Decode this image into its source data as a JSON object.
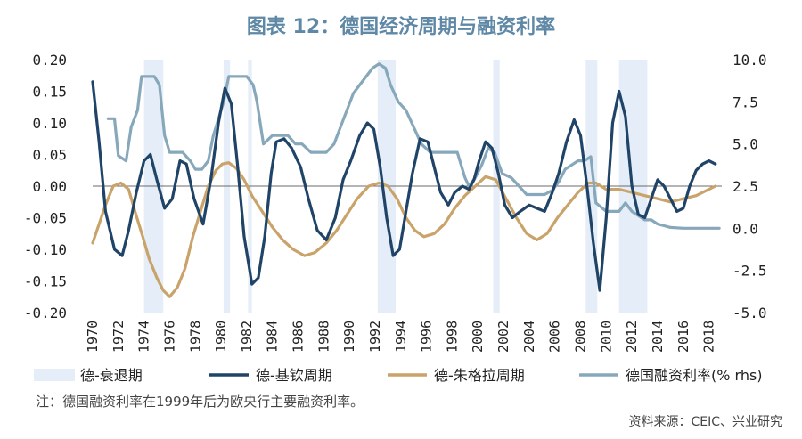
{
  "title": "图表 12：德国经济周期与融资利率",
  "note": "注：德国融资利率在1999年后为欧央行主要融资利率。",
  "source": "资料来源：CEIC、兴业研究",
  "colors": {
    "recession": "#e5eef8",
    "juglar": "#1f4467",
    "kuznets": "#c9a369",
    "rate": "#87a8bb",
    "title": "#5e88a6"
  },
  "chart_data": {
    "type": "line",
    "x_ticks": [
      "1970",
      "1972",
      "1974",
      "1976",
      "1978",
      "1980",
      "1982",
      "1984",
      "1986",
      "1988",
      "1990",
      "1992",
      "1994",
      "1996",
      "1998",
      "2000",
      "2002",
      "2004",
      "2006",
      "2008",
      "2010",
      "2012",
      "2014",
      "2016",
      "2018"
    ],
    "xlim": [
      1970,
      2019
    ],
    "ylim_left": [
      -0.2,
      0.2
    ],
    "ylim_right": [
      -5.0,
      10.0
    ],
    "y_ticks_left": [
      "0.20",
      "0.15",
      "0.10",
      "0.05",
      "0.00",
      "-0.05",
      "-0.10",
      "-0.15",
      "-0.20"
    ],
    "y_ticks_right": [
      "10.0",
      "7.5",
      "5.0",
      "2.5",
      "0.0",
      "-2.5",
      "-5.0"
    ],
    "recessions": [
      [
        1974.0,
        1975.5
      ],
      [
        1980.2,
        1980.7
      ],
      [
        1982.1,
        1982.4
      ],
      [
        1992.2,
        1993.6
      ],
      [
        2001.2,
        2001.7
      ],
      [
        2008.4,
        2009.3
      ],
      [
        2011.0,
        2013.2
      ]
    ],
    "legend": [
      {
        "label": "德-衰退期",
        "kind": "area",
        "color_key": "recession"
      },
      {
        "label": "德-基钦周期",
        "kind": "line",
        "color_key": "juglar"
      },
      {
        "label": "德-朱格拉周期",
        "kind": "line",
        "color_key": "kuznets"
      },
      {
        "label": "德国融资利率(% rhs)",
        "kind": "line",
        "color_key": "rate"
      }
    ],
    "series": [
      {
        "name": "德-基钦周期",
        "axis": "left",
        "color_key": "juglar",
        "x": [
          1970,
          1970.5,
          1971,
          1971.7,
          1972.3,
          1972.8,
          1973.4,
          1974,
          1974.5,
          1975,
          1975.6,
          1976.2,
          1976.8,
          1977.3,
          1977.9,
          1978.6,
          1979.2,
          1979.8,
          1980.3,
          1980.8,
          1981.3,
          1981.8,
          1982.4,
          1982.9,
          1983.4,
          1983.9,
          1984.3,
          1984.9,
          1985.5,
          1986.2,
          1986.8,
          1987.5,
          1988.2,
          1988.9,
          1989.5,
          1990.1,
          1990.8,
          1991.4,
          1991.9,
          1992.4,
          1992.9,
          1993.4,
          1993.9,
          1994.4,
          1994.9,
          1995.5,
          1996.1,
          1996.6,
          1997.1,
          1997.7,
          1998.2,
          1998.8,
          1999.3,
          1999.7,
          2000.1,
          2000.6,
          2001.1,
          2001.6,
          2002.1,
          2002.7,
          2003.3,
          2004,
          2004.6,
          2005.2,
          2005.8,
          2006.3,
          2006.9,
          2007.5,
          2008,
          2008.5,
          2009,
          2009.5,
          2010,
          2010.5,
          2011,
          2011.5,
          2012,
          2012.5,
          2013,
          2013.5,
          2014,
          2014.5,
          2015,
          2015.5,
          2016,
          2016.5,
          2017,
          2017.5,
          2018,
          2018.5
        ],
        "values": [
          0.165,
          0.07,
          -0.04,
          -0.1,
          -0.11,
          -0.07,
          -0.01,
          0.04,
          0.05,
          0.01,
          -0.035,
          -0.02,
          0.04,
          0.035,
          -0.02,
          -0.06,
          0.01,
          0.1,
          0.155,
          0.13,
          0.03,
          -0.08,
          -0.155,
          -0.145,
          -0.08,
          0.02,
          0.07,
          0.075,
          0.06,
          0.03,
          -0.02,
          -0.07,
          -0.085,
          -0.05,
          0.01,
          0.04,
          0.08,
          0.1,
          0.09,
          0.03,
          -0.05,
          -0.11,
          -0.1,
          -0.04,
          0.02,
          0.075,
          0.07,
          0.03,
          -0.01,
          -0.03,
          -0.01,
          0.0,
          -0.005,
          0.01,
          0.04,
          0.07,
          0.06,
          0.02,
          -0.03,
          -0.05,
          -0.04,
          -0.03,
          -0.035,
          -0.04,
          -0.01,
          0.02,
          0.07,
          0.105,
          0.08,
          0.0,
          -0.09,
          -0.165,
          -0.05,
          0.1,
          0.15,
          0.11,
          0.0,
          -0.045,
          -0.05,
          -0.02,
          0.01,
          0.0,
          -0.02,
          -0.04,
          -0.035,
          0.0,
          0.025,
          0.035,
          0.04,
          0.035
        ]
      },
      {
        "name": "德-朱格拉周期",
        "axis": "left",
        "color_key": "kuznets",
        "x": [
          1970,
          1970.5,
          1971,
          1971.6,
          1972.2,
          1972.8,
          1973.3,
          1973.9,
          1974.4,
          1975,
          1975.5,
          1976,
          1976.6,
          1977.2,
          1977.8,
          1978.4,
          1979,
          1979.6,
          1980.1,
          1980.6,
          1981.2,
          1981.8,
          1982.4,
          1983.2,
          1984,
          1984.8,
          1985.6,
          1986.5,
          1987.3,
          1988.2,
          1989,
          1989.8,
          1990.6,
          1991.5,
          1992.3,
          1993,
          1993.7,
          1994.4,
          1995.1,
          1995.8,
          1996.6,
          1997.4,
          1998.2,
          1999,
          1999.8,
          2000.6,
          2001.4,
          2002.2,
          2003,
          2003.8,
          2004.6,
          2005.4,
          2006.2,
          2007,
          2007.8,
          2008.6,
          2009.2,
          2010,
          2011,
          2012,
          2013,
          2014,
          2015,
          2016,
          2017,
          2018,
          2018.5
        ],
        "values": [
          -0.09,
          -0.06,
          -0.03,
          0.0,
          0.005,
          -0.005,
          -0.04,
          -0.08,
          -0.115,
          -0.145,
          -0.165,
          -0.175,
          -0.16,
          -0.13,
          -0.08,
          -0.04,
          0.0,
          0.025,
          0.035,
          0.037,
          0.028,
          0.01,
          -0.015,
          -0.04,
          -0.065,
          -0.085,
          -0.1,
          -0.11,
          -0.105,
          -0.09,
          -0.07,
          -0.045,
          -0.02,
          0.0,
          0.005,
          0.0,
          -0.02,
          -0.05,
          -0.07,
          -0.08,
          -0.075,
          -0.06,
          -0.035,
          -0.015,
          0.0,
          0.015,
          0.01,
          -0.02,
          -0.05,
          -0.075,
          -0.085,
          -0.075,
          -0.05,
          -0.03,
          -0.01,
          0.005,
          0.005,
          -0.005,
          -0.005,
          -0.01,
          -0.015,
          -0.02,
          -0.025,
          -0.02,
          -0.015,
          -0.005,
          0.0
        ]
      },
      {
        "name": "德国融资利率(% rhs)",
        "axis": "right",
        "color_key": "rate",
        "x": [
          1971.2,
          1971.7,
          1972,
          1972.6,
          1973,
          1973.5,
          1973.8,
          1974.3,
          1974.8,
          1975.2,
          1975.6,
          1976,
          1976.5,
          1977,
          1977.6,
          1978,
          1978.5,
          1979,
          1979.4,
          1979.8,
          1980.2,
          1980.6,
          1981,
          1981.5,
          1982,
          1982.5,
          1982.8,
          1983.3,
          1984,
          1984.6,
          1985.2,
          1985.8,
          1986.3,
          1987,
          1987.6,
          1988.2,
          1988.8,
          1989.3,
          1989.8,
          1990.3,
          1990.8,
          1991.3,
          1991.8,
          1992.3,
          1992.8,
          1993.2,
          1993.8,
          1994.4,
          1995,
          1995.6,
          1996.3,
          1997,
          1997.7,
          1998.4,
          1999,
          1999.3,
          1999.8,
          2000.3,
          2000.8,
          2001.3,
          2001.9,
          2002.6,
          2003.2,
          2003.8,
          2004.5,
          2005.2,
          2005.8,
          2006.3,
          2006.8,
          2007.3,
          2007.8,
          2008.3,
          2008.8,
          2009.2,
          2010,
          2011,
          2011.5,
          2012,
          2012.5,
          2013,
          2013.5,
          2014,
          2014.5,
          2015,
          2016,
          2017,
          2018,
          2018.8
        ],
        "values": [
          6.5,
          6.5,
          4.3,
          4.0,
          6.0,
          7.0,
          9.0,
          9.0,
          9.0,
          8.5,
          5.5,
          4.5,
          4.5,
          4.5,
          4.0,
          3.5,
          3.5,
          4.0,
          5.5,
          6.5,
          7.5,
          9.0,
          9.0,
          9.0,
          9.0,
          8.5,
          7.5,
          5.0,
          5.5,
          5.5,
          5.5,
          5.0,
          5.0,
          4.5,
          4.5,
          4.5,
          5.0,
          6.0,
          7.0,
          8.0,
          8.5,
          9.0,
          9.5,
          9.75,
          9.5,
          8.5,
          7.5,
          7.0,
          6.0,
          5.0,
          4.5,
          4.5,
          4.5,
          4.5,
          3.0,
          2.5,
          3.0,
          3.75,
          4.75,
          4.5,
          3.25,
          3.0,
          2.5,
          2.0,
          2.0,
          2.0,
          2.25,
          2.75,
          3.5,
          3.75,
          4.0,
          4.0,
          4.25,
          1.5,
          1.0,
          1.0,
          1.5,
          1.0,
          0.75,
          0.5,
          0.5,
          0.25,
          0.15,
          0.05,
          0.0,
          0.0,
          0.0,
          0.0
        ]
      }
    ]
  }
}
